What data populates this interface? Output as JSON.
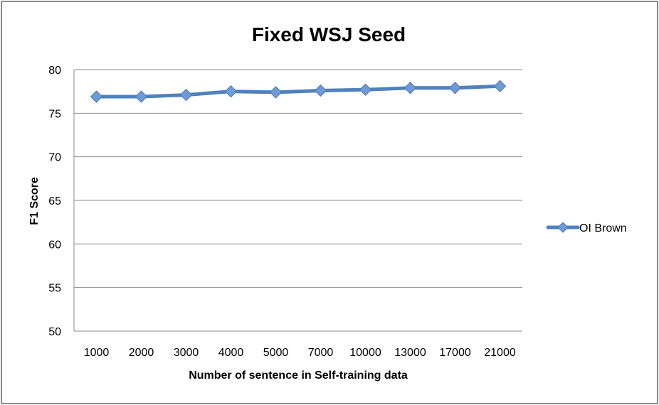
{
  "chart_data": {
    "type": "line",
    "title": "Fixed WSJ Seed",
    "xlabel": "Number of sentence in Self-training data",
    "ylabel": "F1 Score",
    "categories": [
      "1000",
      "2000",
      "3000",
      "4000",
      "5000",
      "7000",
      "10000",
      "13000",
      "17000",
      "21000"
    ],
    "ylim": [
      50,
      80
    ],
    "yticks": [
      50,
      55,
      60,
      65,
      70,
      75,
      80
    ],
    "grid": true,
    "legend_position": "right",
    "series": [
      {
        "name": "OI Brown",
        "color": "#4f81bd",
        "marker": "diamond",
        "values": [
          76.9,
          76.9,
          77.1,
          77.5,
          77.4,
          77.6,
          77.7,
          77.9,
          77.9,
          78.1
        ]
      }
    ]
  }
}
